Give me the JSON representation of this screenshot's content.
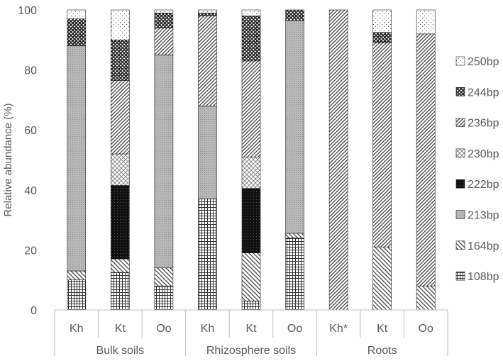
{
  "chart_data": {
    "type": "bar",
    "stacked": true,
    "percent_stacked": true,
    "ylabel": "Relative abundance (%)",
    "ylim": [
      0,
      100
    ],
    "yticks": [
      "0",
      "20",
      "40",
      "60",
      "80",
      "100"
    ],
    "categories": [
      "Kh",
      "Kt",
      "Oo",
      "Kh",
      "Kt",
      "Oo",
      "Kh*",
      "Kt",
      "Oo"
    ],
    "groups": [
      {
        "label": "Bulk soils",
        "span": [
          0,
          2
        ]
      },
      {
        "label": "Rhizosphere soils",
        "span": [
          3,
          5
        ]
      },
      {
        "label": "Roots",
        "span": [
          6,
          8
        ]
      }
    ],
    "series": [
      {
        "name": "108bp",
        "pattern": "grid",
        "values": [
          10,
          12.5,
          8,
          37,
          3,
          24,
          0,
          0,
          0
        ]
      },
      {
        "name": "164bp",
        "pattern": "diag-down",
        "values": [
          3,
          4.5,
          6,
          0,
          16,
          1.5,
          0,
          21,
          8
        ]
      },
      {
        "name": "213bp",
        "pattern": "gray-dots",
        "values": [
          75,
          0,
          71,
          31,
          0,
          71,
          0,
          0,
          0
        ]
      },
      {
        "name": "222bp",
        "pattern": "dark",
        "values": [
          0,
          24.5,
          0,
          0,
          21.5,
          0,
          0,
          0,
          0
        ]
      },
      {
        "name": "230bp",
        "pattern": "light-cross",
        "values": [
          0,
          10.5,
          0,
          0,
          10.5,
          0,
          0,
          0,
          0
        ]
      },
      {
        "name": "236bp",
        "pattern": "diag-up",
        "values": [
          0,
          24.5,
          9,
          30,
          32,
          0,
          100,
          68,
          84
        ]
      },
      {
        "name": "244bp",
        "pattern": "dark-cross",
        "values": [
          9,
          13.5,
          5,
          1,
          15,
          3.5,
          0,
          3.5,
          0
        ]
      },
      {
        "name": "250bp",
        "pattern": "dots",
        "values": [
          3,
          10,
          1,
          1,
          2,
          0,
          0,
          7.5,
          8
        ]
      }
    ],
    "legend_order": [
      "250bp",
      "244bp",
      "236bp",
      "230bp",
      "222bp",
      "213bp",
      "164bp",
      "108bp"
    ],
    "legend_position": "right",
    "grid": false
  }
}
